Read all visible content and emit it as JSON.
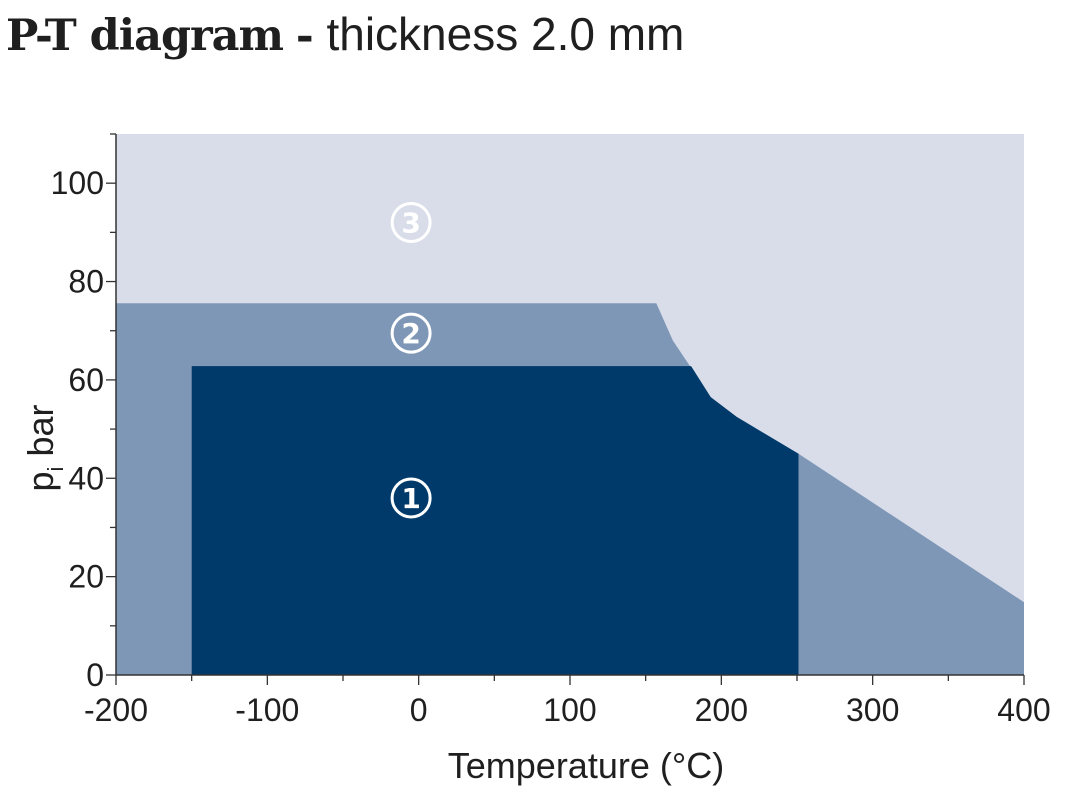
{
  "title": {
    "bold": "P-T diagram",
    "separator": "-",
    "rest": "thickness 2.0 mm"
  },
  "chart_data": {
    "type": "area",
    "title": "P-T diagram - thickness 2.0 mm",
    "xlabel": "Temperature (°C)",
    "ylabel": "p",
    "ylabel_subscript": "i",
    "ylabel_unit": "bar",
    "xlim": [
      -200,
      400
    ],
    "ylim": [
      0,
      110
    ],
    "xticks": [
      -200,
      -100,
      0,
      100,
      200,
      300,
      400
    ],
    "xtick_labels": [
      "-200",
      "-100",
      "0",
      "100",
      "200",
      "300",
      "400"
    ],
    "yticks": [
      0,
      20,
      40,
      60,
      80,
      100
    ],
    "ytick_labels": [
      "0",
      "20",
      "40",
      "60",
      "80",
      "100"
    ],
    "grid": false,
    "colors": {
      "region1": "#003a6a",
      "region2": "#7f97b7",
      "region3": "#d8dde9",
      "axis": "#333333"
    },
    "regions": [
      {
        "id": "region3",
        "label": "③",
        "label_at": [
          -5,
          92
        ],
        "polygon": [
          [
            -200,
            0
          ],
          [
            400,
            0
          ],
          [
            400,
            110
          ],
          [
            -200,
            110
          ]
        ]
      },
      {
        "id": "region2",
        "label": "②",
        "label_at": [
          -5,
          69.5
        ],
        "polygon": [
          [
            -200,
            0
          ],
          [
            400,
            0
          ],
          [
            400,
            14.8
          ],
          [
            251,
            45
          ],
          [
            210,
            52.5
          ],
          [
            193,
            56.5
          ],
          [
            168,
            68
          ],
          [
            157,
            75.6
          ],
          [
            -200,
            75.6
          ]
        ]
      },
      {
        "id": "region1",
        "label": "①",
        "label_at": [
          -5,
          36
        ],
        "polygon": [
          [
            -150,
            0
          ],
          [
            251,
            0
          ],
          [
            251,
            45
          ],
          [
            210,
            52.5
          ],
          [
            193,
            56.5
          ],
          [
            180,
            62.8
          ],
          [
            -150,
            62.8
          ]
        ]
      }
    ]
  }
}
